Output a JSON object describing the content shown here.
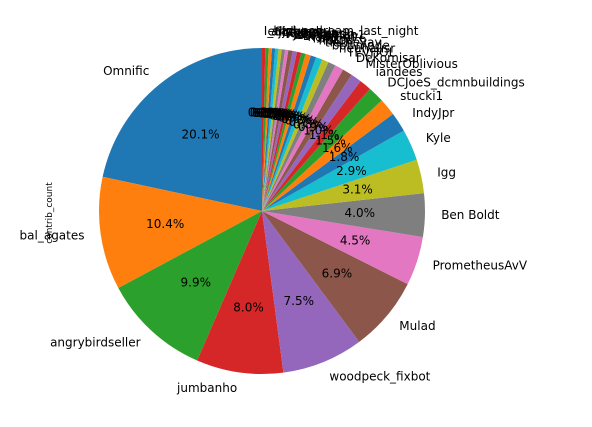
{
  "chart_data": {
    "type": "pie",
    "ylabel": "contrib_count",
    "start_angle_deg": 90,
    "direction": "counterclockwise",
    "slices": [
      {
        "label": "Omnific",
        "value": 20.1,
        "pct_label": "20.1%",
        "color": "#1f77b4"
      },
      {
        "label": "bal_agates",
        "value": 10.4,
        "pct_label": "10.4%",
        "color": "#ff7f0e"
      },
      {
        "label": "angrybirdseller",
        "value": 9.9,
        "pct_label": "9.9%",
        "color": "#2ca02c"
      },
      {
        "label": "jumbanho",
        "value": 8.0,
        "pct_label": "8.0%",
        "color": "#d62728"
      },
      {
        "label": "woodpeck_fixbot",
        "value": 7.5,
        "pct_label": "7.5%",
        "color": "#9467bd"
      },
      {
        "label": "Mulad",
        "value": 6.9,
        "pct_label": "6.9%",
        "color": "#8c564b"
      },
      {
        "label": "PrometheusAvV",
        "value": 4.5,
        "pct_label": "4.5%",
        "color": "#e377c2"
      },
      {
        "label": "Ben Boldt",
        "value": 4.0,
        "pct_label": "4.0%",
        "color": "#7f7f7f"
      },
      {
        "label": "Igg",
        "value": 3.1,
        "pct_label": "3.1%",
        "color": "#bcbd22"
      },
      {
        "label": "Kyle",
        "value": 2.9,
        "pct_label": "2.9%",
        "color": "#17becf"
      },
      {
        "label": "IndyJpr",
        "value": 1.8,
        "pct_label": "1.8%",
        "color": "#1f77b4"
      },
      {
        "label": "stucki1",
        "value": 1.6,
        "pct_label": "1.6%",
        "color": "#ff7f0e"
      },
      {
        "label": "DCJoeS_dcmnbuildings",
        "value": 1.5,
        "pct_label": "1.5%",
        "color": "#2ca02c"
      },
      {
        "label": "iandees",
        "value": 1.1,
        "pct_label": "1.1%",
        "color": "#d62728"
      },
      {
        "label": "MisterOblivious",
        "value": 1.0,
        "pct_label": "1.0%",
        "color": "#9467bd"
      },
      {
        "label": "DeKomisar",
        "value": 0.9,
        "pct_label": "0.9%",
        "color": "#8c564b"
      },
      {
        "label": "TEVHOL",
        "value": 0.8,
        "pct_label": "0.8%",
        "color": "#e377c2"
      },
      {
        "label": "neuhausr",
        "value": 0.7,
        "pct_label": "0.7%",
        "color": "#7f7f7f"
      },
      {
        "label": "bot-mode",
        "value": 0.6,
        "pct_label": "0.6%",
        "color": "#bcbd22"
      },
      {
        "label": "tlerheyay",
        "value": 0.6,
        "pct_label": "0.6%",
        "color": "#17becf"
      },
      {
        "label": "nbtpd",
        "value": 0.5,
        "pct_label": "0.5%",
        "color": "#1f77b4"
      },
      {
        "label": "ralph976",
        "value": 0.5,
        "pct_label": "0.5%",
        "color": "#ff7f0e"
      },
      {
        "label": "haha_m",
        "value": 0.4,
        "pct_label": "0.4%",
        "color": "#2ca02c"
      },
      {
        "label": "Bryan",
        "value": 0.4,
        "pct_label": "0.4%",
        "color": "#d62728"
      },
      {
        "label": "steveman1",
        "value": 0.4,
        "pct_label": "0.4%",
        "color": "#9467bd"
      },
      {
        "label": "Jothirnadh",
        "value": 0.4,
        "pct_label": "0.4%",
        "color": "#8c564b"
      },
      {
        "label": "GeoMaps",
        "value": 0.3,
        "pct_label": "0.3%",
        "color": "#e377c2"
      },
      {
        "label": "Rub21",
        "value": 0.3,
        "pct_label": "0.3%",
        "color": "#7f7f7f"
      },
      {
        "label": "nammala",
        "value": 0.3,
        "pct_label": "0.3%",
        "color": "#bcbd22"
      },
      {
        "label": "jbr_msp",
        "value": 0.3,
        "pct_label": "0.3%",
        "color": "#17becf"
      },
      {
        "label": "Sjpk",
        "value": 0.3,
        "pct_label": "0.3%",
        "color": "#1f77b4"
      },
      {
        "label": "andygol",
        "value": 0.3,
        "pct_label": "0.3%",
        "color": "#ff7f0e"
      },
      {
        "label": "ediyes",
        "value": 0.3,
        "pct_label": "0.3%",
        "color": "#2ca02c"
      },
      {
        "label": "I_had_a_dream_last_night",
        "value": 0.3,
        "pct_label": "0.3%",
        "color": "#d62728"
      }
    ]
  }
}
